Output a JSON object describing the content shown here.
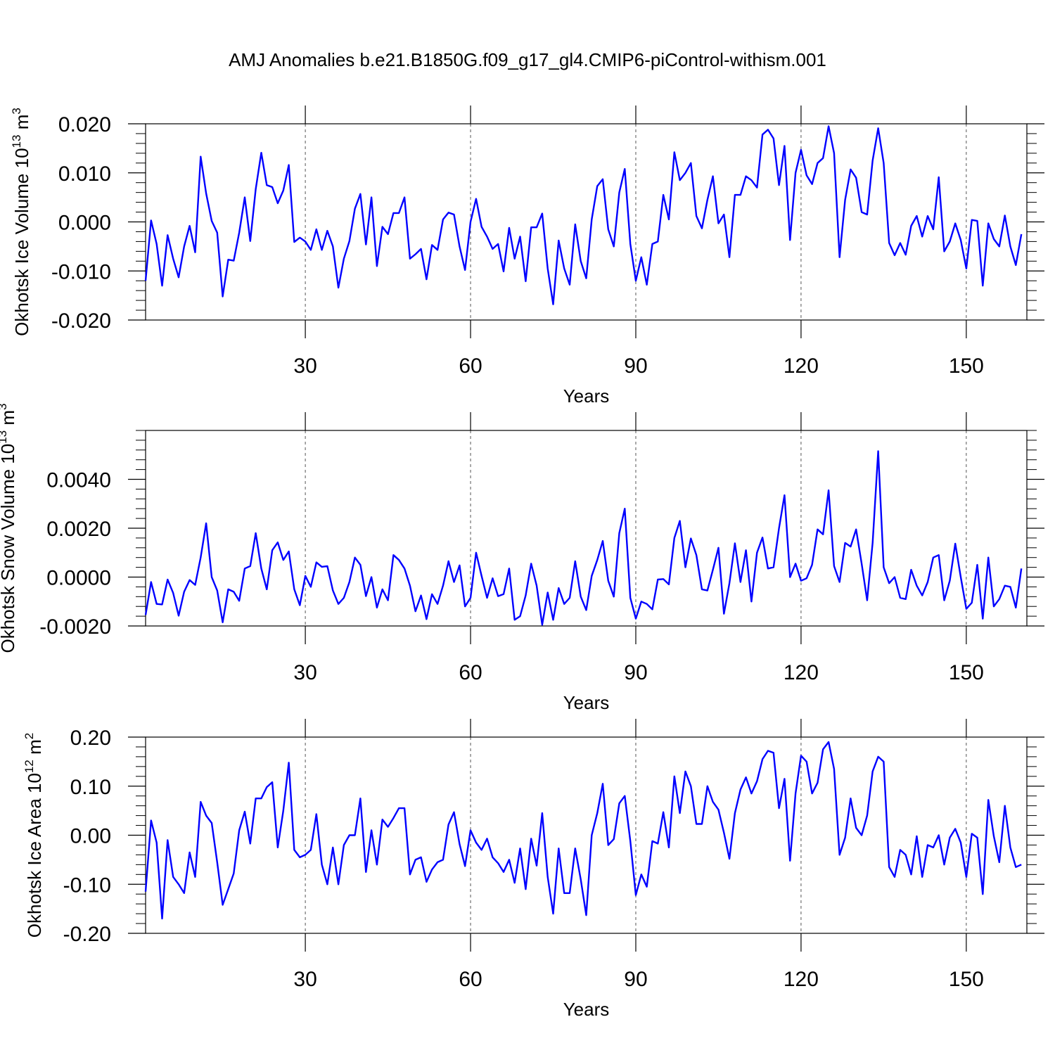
{
  "title": "AMJ Anomalies b.e21.B1850G.f09_g17_gl4.CMIP6-piControl-withism.001",
  "colors": {
    "line": "#0000ff",
    "axis": "#000000",
    "grid": "#555555"
  },
  "chart_data": [
    {
      "type": "line",
      "ylabel_main": "Okhotsk Ice Volume 10",
      "ylabel_exp": "13",
      "ylabel_unit": "m",
      "ylabel_unit_exp": "3",
      "xlabel": "Years",
      "xlim": [
        1,
        161
      ],
      "ylim": [
        -0.02,
        0.02
      ],
      "xticks": [
        30,
        60,
        90,
        120,
        150
      ],
      "xtick_labels": [
        "30",
        "60",
        "90",
        "120",
        "150"
      ],
      "yticks": [
        -0.02,
        -0.01,
        0.0,
        0.01,
        0.02
      ],
      "ytick_labels": [
        "-0.020",
        "-0.010",
        "0.000",
        "0.010",
        "0.020"
      ],
      "yminor_step": 0.002,
      "x_start": 1,
      "values": [
        -0.012,
        0.0003,
        -0.0045,
        -0.013,
        -0.0027,
        -0.0075,
        -0.0113,
        -0.005,
        -0.0008,
        -0.0062,
        0.0133,
        0.0058,
        0.0002,
        -0.0022,
        -0.0152,
        -0.0077,
        -0.0079,
        -0.0022,
        0.005,
        -0.0039,
        0.0067,
        0.0141,
        0.0075,
        0.0071,
        0.0038,
        0.0064,
        0.0116,
        -0.0041,
        -0.0032,
        -0.004,
        -0.0057,
        -0.0015,
        -0.0057,
        -0.0018,
        -0.005,
        -0.0134,
        -0.0075,
        -0.0039,
        0.0027,
        0.0057,
        -0.0046,
        0.005,
        -0.009,
        -0.001,
        -0.0025,
        0.0018,
        0.0018,
        0.005,
        -0.0075,
        -0.0066,
        -0.0055,
        -0.0117,
        -0.0047,
        -0.0057,
        0.0005,
        0.0019,
        0.0015,
        -0.005,
        -0.0098,
        0.0,
        0.0047,
        -0.001,
        -0.003,
        -0.0055,
        -0.0045,
        -0.0101,
        -0.0012,
        -0.0075,
        -0.003,
        -0.0121,
        -0.0011,
        -0.0011,
        0.0017,
        -0.0095,
        -0.0168,
        -0.0038,
        -0.0095,
        -0.0128,
        -0.0005,
        -0.008,
        -0.0115,
        0.0005,
        0.0073,
        0.0087,
        -0.0015,
        -0.005,
        0.006,
        0.0108,
        -0.0045,
        -0.012,
        -0.0072,
        -0.0128,
        -0.0045,
        -0.004,
        0.0055,
        0.0005,
        0.0142,
        0.0085,
        0.01,
        0.012,
        0.0012,
        -0.0013,
        0.0045,
        0.0093,
        -0.0003,
        0.0015,
        -0.0072,
        0.0055,
        0.0055,
        0.0093,
        0.0085,
        0.007,
        0.0178,
        0.0188,
        0.017,
        0.0075,
        0.0155,
        -0.0037,
        0.01,
        0.0147,
        0.0095,
        0.0077,
        0.012,
        0.013,
        0.0195,
        0.014,
        -0.0072,
        0.0045,
        0.0107,
        0.009,
        0.002,
        0.0015,
        0.0125,
        0.0191,
        0.012,
        -0.0043,
        -0.0068,
        -0.0043,
        -0.0067,
        -0.0008,
        0.0012,
        -0.003,
        0.0012,
        -0.0015,
        0.0091,
        -0.006,
        -0.004,
        -0.0003,
        -0.0037,
        -0.0095,
        0.0004,
        0.0002,
        -0.013,
        -0.0003,
        -0.0035,
        -0.005,
        0.0013,
        -0.005,
        -0.0088,
        -0.0025
      ]
    },
    {
      "type": "line",
      "ylabel_main": "Okhotsk Snow Volume 10",
      "ylabel_exp": "13",
      "ylabel_unit": "m",
      "ylabel_unit_exp": "3",
      "xlabel": "Years",
      "xlim": [
        1,
        161
      ],
      "ylim": [
        -0.002,
        0.006
      ],
      "xticks": [
        30,
        60,
        90,
        120,
        150
      ],
      "xtick_labels": [
        "30",
        "60",
        "90",
        "120",
        "150"
      ],
      "yticks": [
        -0.002,
        0.0,
        0.002,
        0.004
      ],
      "ytick_labels": [
        "-0.0020",
        "0.0000",
        "0.0020",
        "0.0040"
      ],
      "yminor_step": 0.0004,
      "x_start": 1,
      "values": [
        -0.00155,
        -0.0002,
        -0.0011,
        -0.00112,
        -0.0001,
        -0.00065,
        -0.00158,
        -0.0006,
        -0.00012,
        -0.00032,
        0.0008,
        0.0022,
        0.0,
        -0.00055,
        -0.00185,
        -0.0005,
        -0.0006,
        -0.00097,
        0.00035,
        0.00045,
        0.0018,
        0.00035,
        -0.0005,
        0.0011,
        0.00142,
        0.0007,
        0.00105,
        -0.0005,
        -0.00115,
        5e-05,
        -0.0004,
        0.0006,
        0.00042,
        0.00045,
        -0.00055,
        -0.0011,
        -0.00085,
        -0.0002,
        0.0008,
        0.0005,
        -0.00078,
        0.0,
        -0.00125,
        -0.0005,
        -0.00095,
        0.0009,
        0.0007,
        0.00035,
        -0.00035,
        -0.0014,
        -0.00075,
        -0.00172,
        -0.0007,
        -0.0011,
        -0.00035,
        0.00065,
        -0.0002,
        0.00048,
        -0.0012,
        -0.00085,
        0.001,
        5e-05,
        -0.00085,
        -5e-05,
        -0.00078,
        -0.0007,
        0.00035,
        -0.00175,
        -0.0016,
        -0.00075,
        0.00055,
        -0.00035,
        -0.00195,
        -0.00063,
        -0.00175,
        -0.00045,
        -0.0011,
        -0.00085,
        0.00065,
        -0.0008,
        -0.00135,
        5e-05,
        0.0007,
        0.00148,
        -0.00015,
        -0.0008,
        0.0018,
        0.0028,
        -0.00085,
        -0.0017,
        -0.001,
        -0.0011,
        -0.00132,
        -0.0001,
        -8e-05,
        -0.0003,
        0.0016,
        0.0023,
        0.0004,
        0.00158,
        0.0009,
        -0.0005,
        -0.00055,
        0.0003,
        0.0012,
        -0.0015,
        -0.00025,
        0.00138,
        -0.0002,
        0.0011,
        -0.001,
        0.001,
        0.00162,
        0.00035,
        0.0004,
        0.002,
        0.00335,
        0.0,
        0.00055,
        -0.00015,
        -5e-05,
        0.0005,
        0.00195,
        0.00175,
        0.00355,
        0.00045,
        -0.0002,
        0.0014,
        0.00125,
        0.00195,
        0.00055,
        -0.00095,
        0.0014,
        0.00515,
        0.0004,
        -0.00025,
        0.0,
        -0.00085,
        -0.0009,
        0.0003,
        -0.00035,
        -0.00075,
        -0.0002,
        0.0008,
        0.0009,
        -0.00095,
        -0.00015,
        0.00137,
        0.0,
        -0.0013,
        -0.00105,
        0.0005,
        -0.0017,
        0.0008,
        -0.0012,
        -0.0009,
        -0.00035,
        -0.0004,
        -0.00125,
        0.00035
      ]
    },
    {
      "type": "line",
      "ylabel_main": "Okhotsk Ice Area 10",
      "ylabel_exp": "12",
      "ylabel_unit": "m",
      "ylabel_unit_exp": "2",
      "xlabel": "Years",
      "xlim": [
        1,
        161
      ],
      "ylim": [
        -0.2,
        0.2
      ],
      "xticks": [
        30,
        60,
        90,
        120,
        150
      ],
      "xtick_labels": [
        "30",
        "60",
        "90",
        "120",
        "150"
      ],
      "yticks": [
        -0.2,
        -0.1,
        0.0,
        0.1,
        0.2
      ],
      "ytick_labels": [
        "-0.20",
        "-0.10",
        "0.00",
        "0.10",
        "0.20"
      ],
      "yminor_step": 0.02,
      "x_start": 1,
      "values": [
        -0.115,
        0.03,
        -0.015,
        -0.17,
        -0.01,
        -0.085,
        -0.1,
        -0.118,
        -0.035,
        -0.085,
        0.068,
        0.04,
        0.025,
        -0.055,
        -0.142,
        -0.11,
        -0.078,
        0.01,
        0.048,
        -0.017,
        0.075,
        0.075,
        0.098,
        0.108,
        -0.025,
        0.05,
        0.148,
        -0.03,
        -0.045,
        -0.04,
        -0.03,
        0.043,
        -0.06,
        -0.1,
        -0.025,
        -0.1,
        -0.02,
        0.0,
        0.0,
        0.075,
        -0.075,
        0.01,
        -0.06,
        0.032,
        0.017,
        0.035,
        0.055,
        0.055,
        -0.08,
        -0.05,
        -0.045,
        -0.095,
        -0.07,
        -0.055,
        -0.05,
        0.022,
        0.047,
        -0.018,
        -0.063,
        0.01,
        -0.015,
        -0.03,
        -0.007,
        -0.045,
        -0.057,
        -0.075,
        -0.05,
        -0.097,
        -0.027,
        -0.11,
        -0.007,
        -0.062,
        0.045,
        -0.085,
        -0.16,
        -0.027,
        -0.118,
        -0.118,
        -0.027,
        -0.09,
        -0.163,
        0.0,
        0.045,
        0.105,
        -0.02,
        -0.008,
        0.065,
        0.08,
        -0.012,
        -0.122,
        -0.08,
        -0.105,
        -0.012,
        -0.017,
        0.047,
        -0.025,
        0.12,
        0.045,
        0.13,
        0.1,
        0.023,
        0.023,
        0.1,
        0.068,
        0.052,
        0.005,
        -0.048,
        0.045,
        0.093,
        0.118,
        0.085,
        0.11,
        0.155,
        0.172,
        0.168,
        0.055,
        0.115,
        -0.052,
        0.085,
        0.162,
        0.15,
        0.085,
        0.107,
        0.175,
        0.19,
        0.135,
        -0.04,
        -0.005,
        0.075,
        0.015,
        0.0,
        0.04,
        0.13,
        0.16,
        0.15,
        -0.065,
        -0.085,
        -0.03,
        -0.04,
        -0.08,
        -0.002,
        -0.085,
        -0.02,
        -0.025,
        0.0,
        -0.06,
        -0.005,
        0.013,
        -0.015,
        -0.085,
        0.003,
        -0.005,
        -0.12,
        0.072,
        -0.002,
        -0.055,
        0.06,
        -0.025,
        -0.065,
        -0.06
      ]
    }
  ]
}
